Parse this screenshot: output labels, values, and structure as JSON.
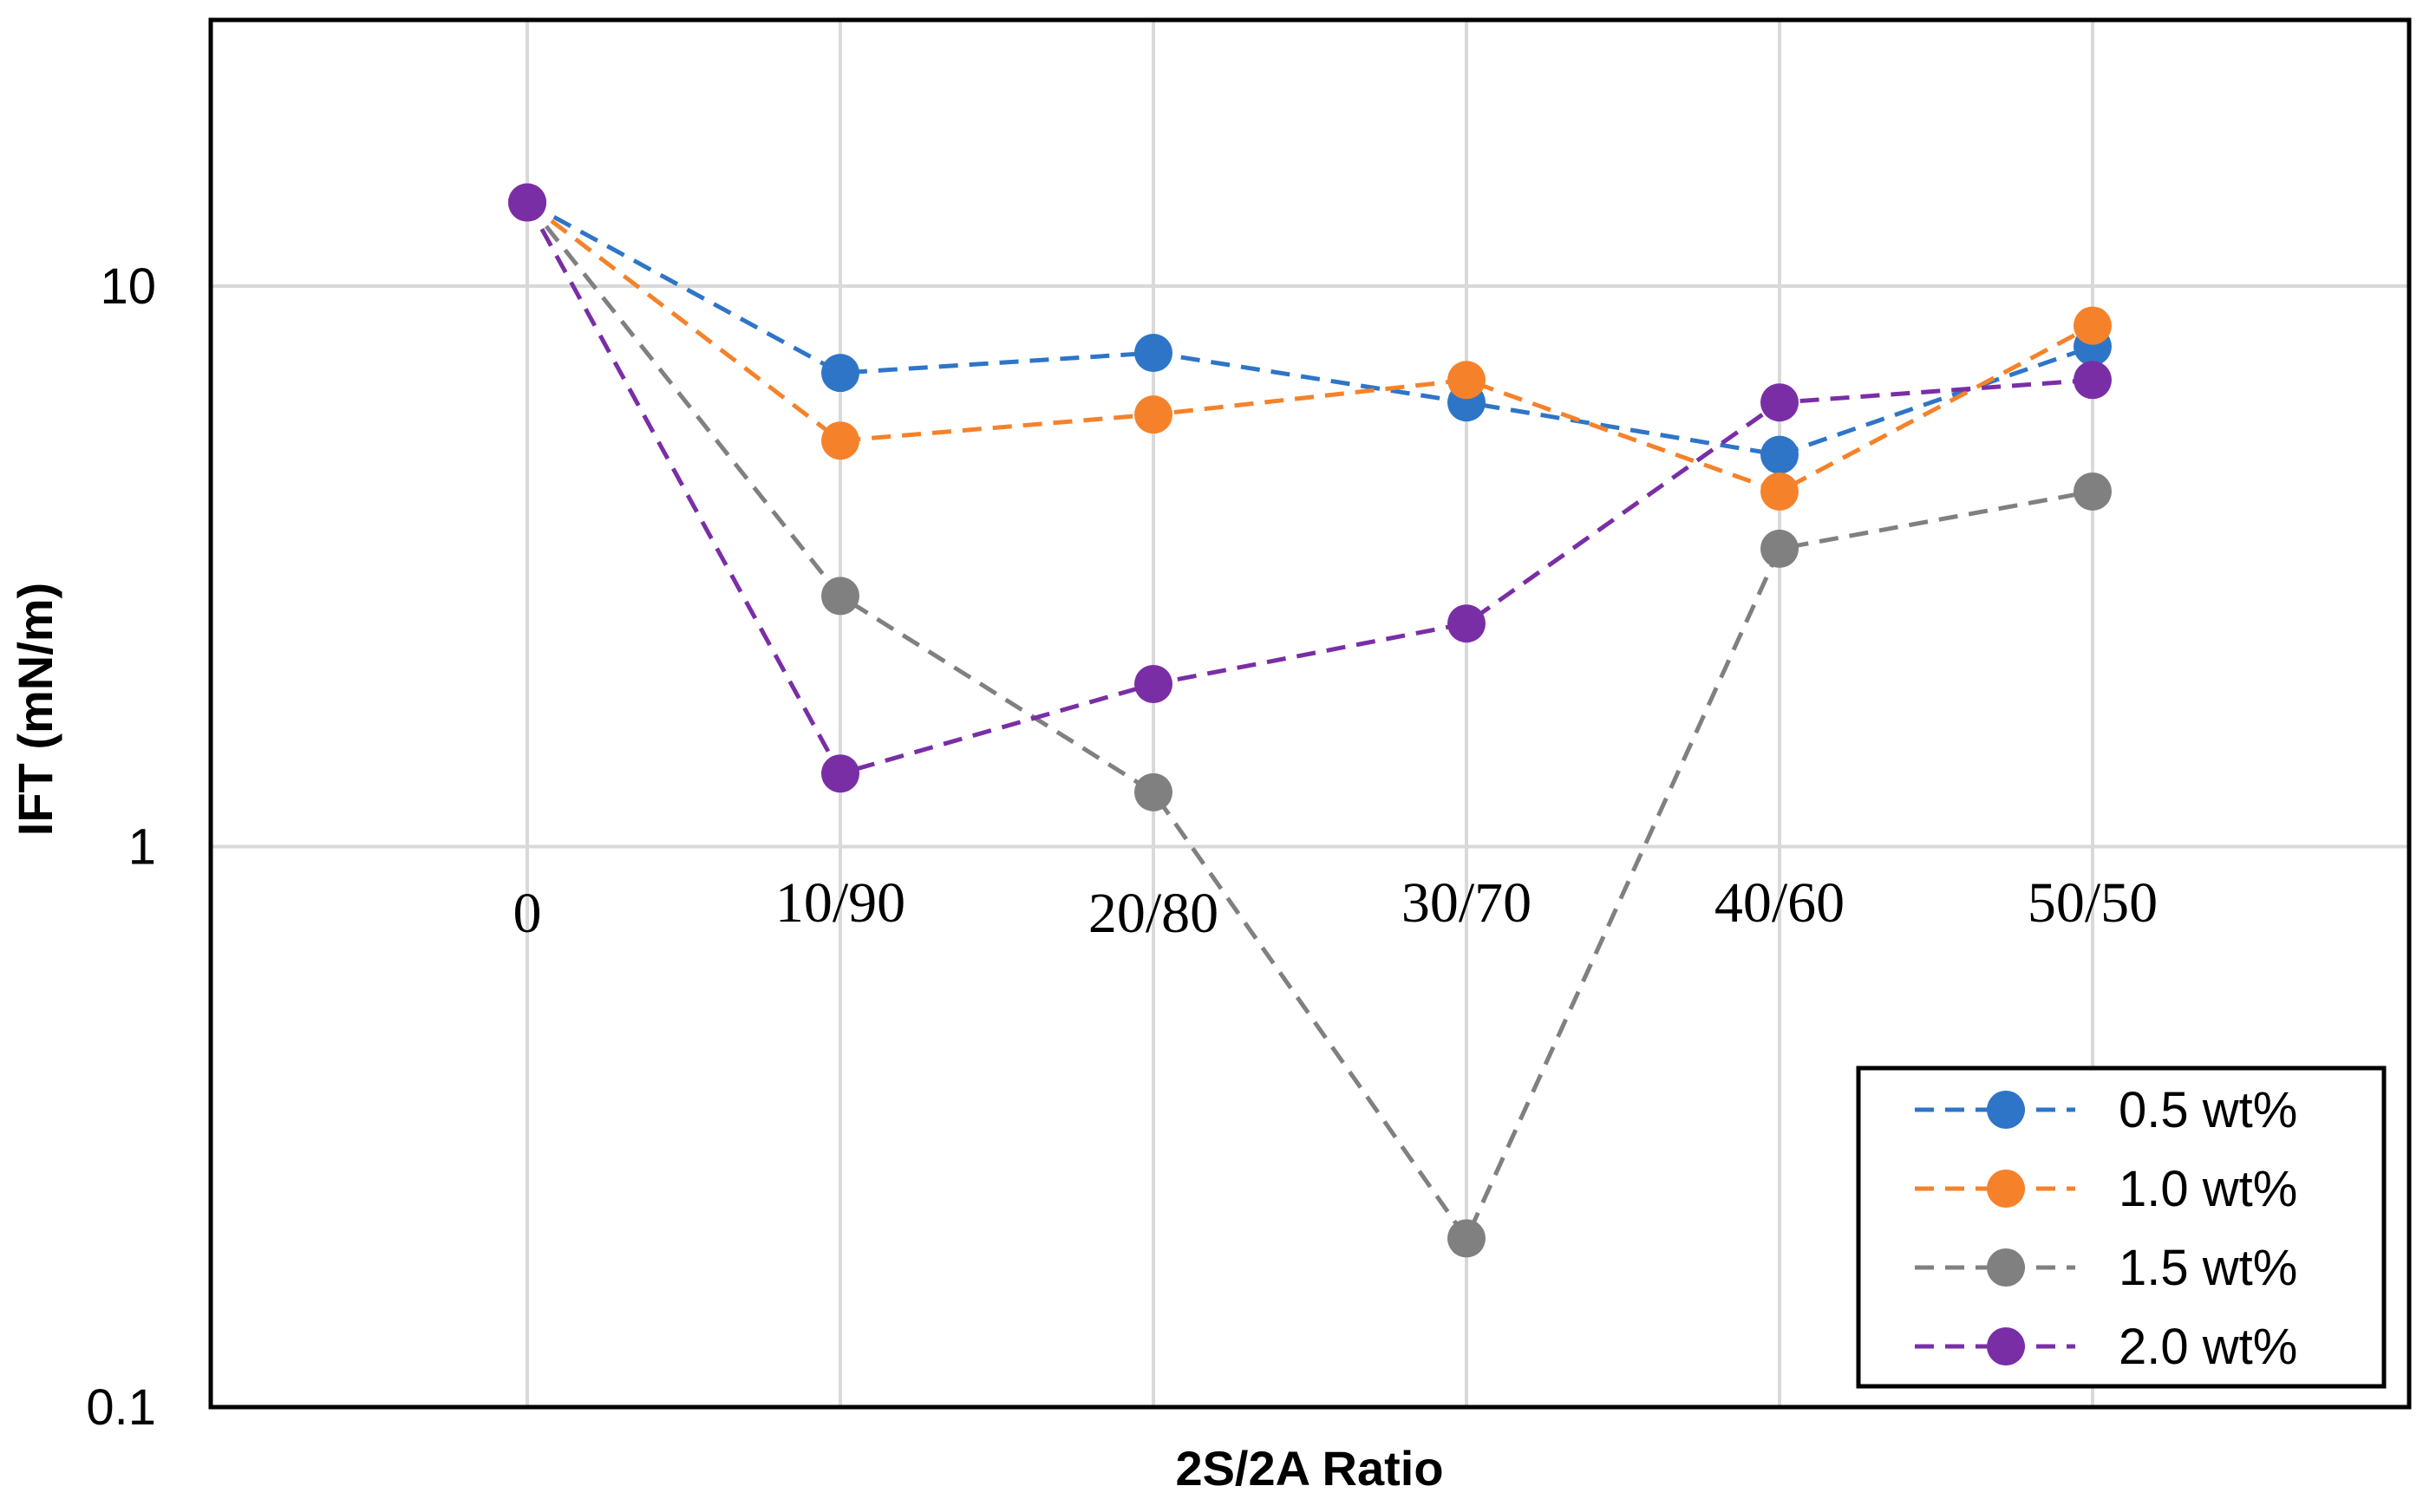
{
  "chart_data": {
    "type": "line",
    "scale_y": "log",
    "title": "",
    "xlabel": "2S/2A Ratio",
    "ylabel": "IFT (mN/m)",
    "categories": [
      "0",
      "10/90",
      "20/80",
      "30/70",
      "40/60",
      "50/50"
    ],
    "ylim": [
      0.1,
      30
    ],
    "yticks": [
      {
        "value": 0.1,
        "label": "0.1"
      },
      {
        "value": 1,
        "label": "1"
      },
      {
        "value": 10,
        "label": "10"
      }
    ],
    "grid": true,
    "legend_position": "bottom-right",
    "series": [
      {
        "name": "0.5 wt%",
        "color": "#2E75C8",
        "values": [
          14.1,
          7.0,
          7.6,
          6.2,
          5.0,
          7.8
        ]
      },
      {
        "name": "1.0 wt%",
        "color": "#F5822A",
        "values": [
          14.1,
          5.3,
          5.9,
          6.8,
          4.3,
          8.5
        ]
      },
      {
        "name": "1.5 wt%",
        "color": "#808080",
        "values": [
          14.1,
          2.8,
          1.25,
          0.2,
          3.4,
          4.3
        ]
      },
      {
        "name": "2.0 wt%",
        "color": "#7A2EA6",
        "values": [
          14.1,
          1.35,
          1.95,
          2.5,
          6.2,
          6.8
        ]
      }
    ]
  }
}
